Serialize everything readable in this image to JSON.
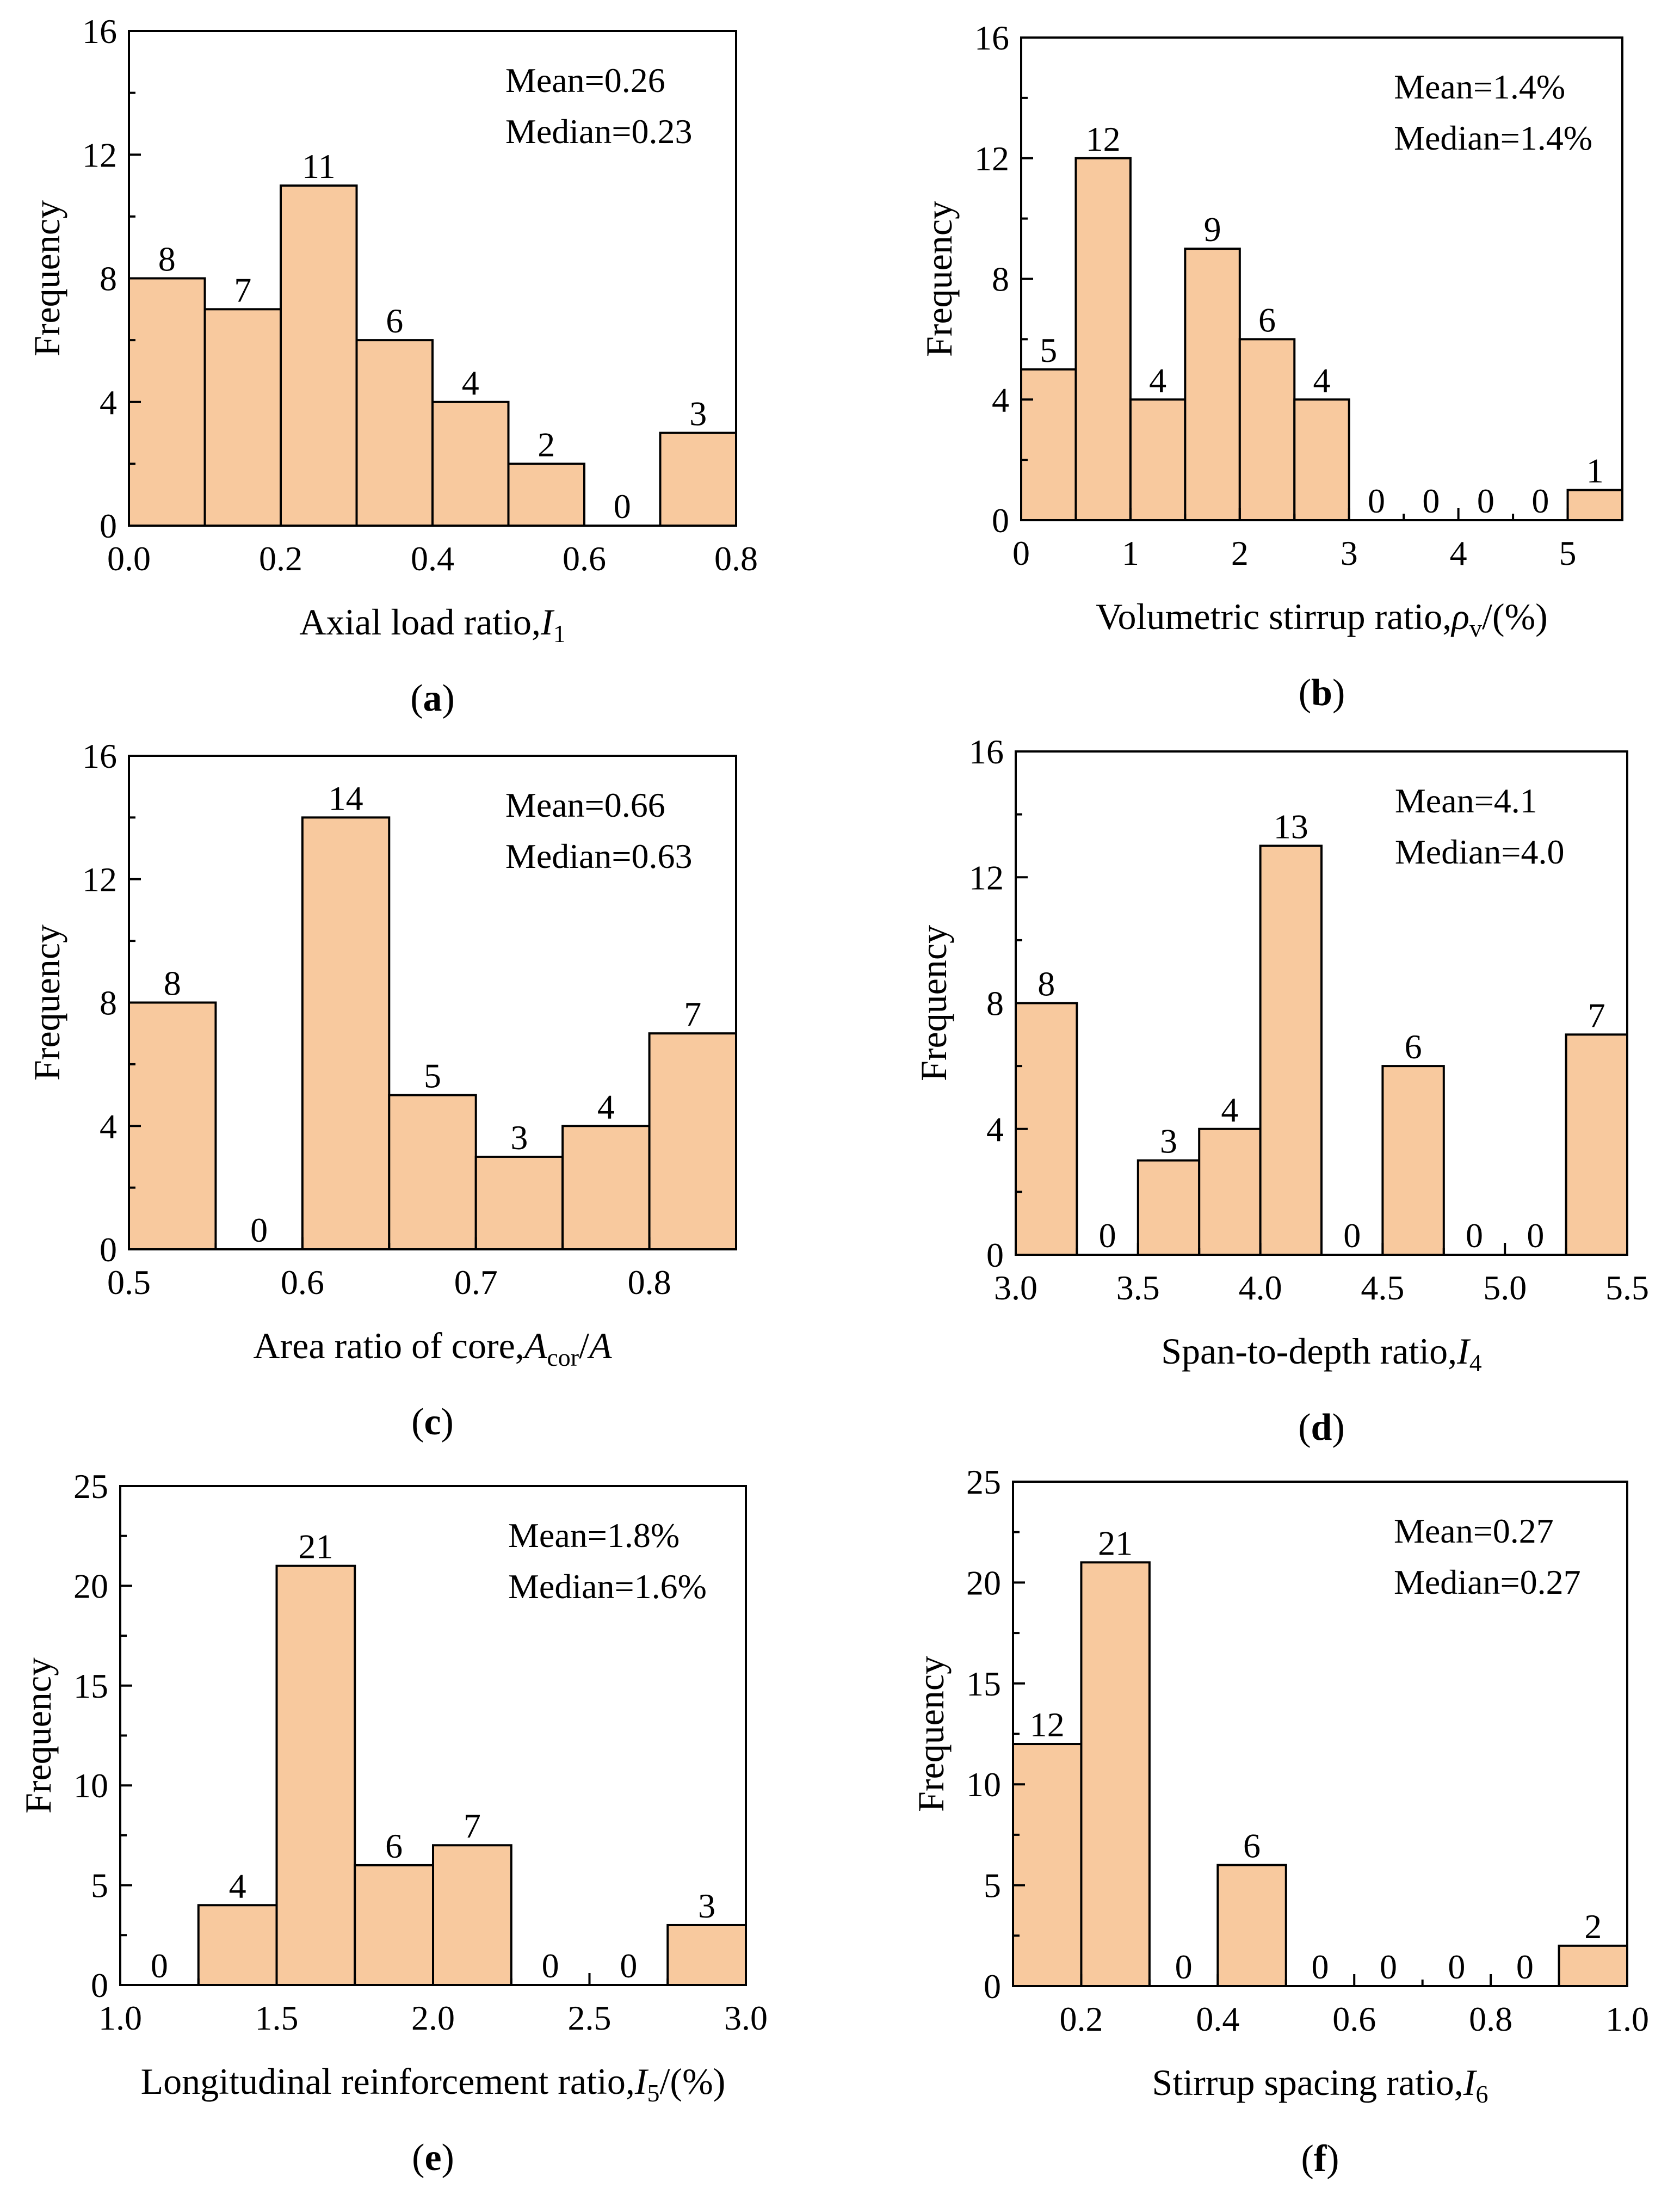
{
  "chart_data": [
    {
      "id": "a",
      "type": "bar",
      "panel_label": "a",
      "xlabel": "Axial load ratio,",
      "xlabel_sym": "I",
      "xlabel_sub": "1",
      "xlabel_tail": "",
      "ylabel": "Frequency",
      "mean_text": "Mean=0.26",
      "median_text": "Median=0.23",
      "xlim": [
        0.0,
        0.8
      ],
      "ylim": [
        0,
        16
      ],
      "x_ticks": [
        0.0,
        0.2,
        0.4,
        0.6,
        0.8
      ],
      "x_tick_labels": [
        "0.0",
        "0.2",
        "0.4",
        "0.6",
        "0.8"
      ],
      "x_minor_ticks": [
        0.1,
        0.3,
        0.5,
        0.7
      ],
      "y_ticks": [
        0,
        4,
        8,
        12,
        16
      ],
      "y_tick_labels": [
        "0",
        "4",
        "8",
        "12",
        "16"
      ],
      "y_minor_ticks": [
        2,
        6,
        10,
        14
      ],
      "bin_edges": [
        0.0,
        0.1,
        0.2,
        0.3,
        0.4,
        0.5,
        0.6,
        0.7,
        0.8
      ],
      "values": [
        8,
        7,
        11,
        6,
        4,
        2,
        0,
        3
      ]
    },
    {
      "id": "b",
      "type": "bar",
      "panel_label": "b",
      "xlabel": "Volumetric stirrup ratio,",
      "xlabel_sym": "ρ",
      "xlabel_sub": "v",
      "xlabel_tail": "/(%)",
      "ylabel": "Frequency",
      "mean_text": "Mean=1.4%",
      "median_text": "Median=1.4%",
      "xlim": [
        0,
        5.5
      ],
      "ylim": [
        0,
        16
      ],
      "x_ticks": [
        0,
        1,
        2,
        3,
        4,
        5
      ],
      "x_tick_labels": [
        "0",
        "1",
        "2",
        "3",
        "4",
        "5"
      ],
      "x_minor_ticks": [
        0.5,
        1.5,
        2.5,
        3.5,
        4.5
      ],
      "y_ticks": [
        0,
        4,
        8,
        12,
        16
      ],
      "y_tick_labels": [
        "0",
        "4",
        "8",
        "12",
        "16"
      ],
      "y_minor_ticks": [
        2,
        6,
        10,
        14
      ],
      "bin_edges": [
        0,
        0.5,
        1.0,
        1.5,
        2.0,
        2.5,
        3.0,
        3.5,
        4.0,
        4.5,
        5.0,
        5.5
      ],
      "values": [
        5,
        12,
        4,
        9,
        6,
        4,
        0,
        0,
        0,
        0,
        1
      ]
    },
    {
      "id": "c",
      "type": "bar",
      "panel_label": "c",
      "xlabel": "Area ratio of core,",
      "xlabel_sym": "A",
      "xlabel_sub": "cor",
      "xlabel_tail": "/A",
      "ylabel": "Frequency",
      "mean_text": "Mean=0.66",
      "median_text": "Median=0.63",
      "xlim": [
        0.5,
        0.85
      ],
      "ylim": [
        0,
        16
      ],
      "x_ticks": [
        0.5,
        0.6,
        0.7,
        0.8
      ],
      "x_tick_labels": [
        "0.5",
        "0.6",
        "0.7",
        "0.8"
      ],
      "x_minor_ticks": [
        0.55,
        0.65,
        0.75
      ],
      "y_ticks": [
        0,
        4,
        8,
        12,
        16
      ],
      "y_tick_labels": [
        "0",
        "4",
        "8",
        "12",
        "16"
      ],
      "y_minor_ticks": [
        2,
        6,
        10,
        14
      ],
      "bin_edges": [
        0.5,
        0.55,
        0.6,
        0.65,
        0.7,
        0.75,
        0.8,
        0.85
      ],
      "values": [
        8,
        0,
        14,
        5,
        3,
        4,
        7
      ]
    },
    {
      "id": "d",
      "type": "bar",
      "panel_label": "d",
      "xlabel": "Span-to-depth ratio,",
      "xlabel_sym": "I",
      "xlabel_sub": "4",
      "xlabel_tail": "",
      "ylabel": "Frequency",
      "mean_text": "Mean=4.1",
      "median_text": "Median=4.0",
      "xlim": [
        3.0,
        5.5
      ],
      "ylim": [
        0,
        16
      ],
      "x_ticks": [
        3.0,
        3.5,
        4.0,
        4.5,
        5.0,
        5.5
      ],
      "x_tick_labels": [
        "3.0",
        "3.5",
        "4.0",
        "4.5",
        "5.0",
        "5.5"
      ],
      "x_minor_ticks": [
        3.25,
        3.75,
        4.25,
        4.75,
        5.25
      ],
      "y_ticks": [
        0,
        4,
        8,
        12,
        16
      ],
      "y_tick_labels": [
        "0",
        "4",
        "8",
        "12",
        "16"
      ],
      "y_minor_ticks": [
        2,
        6,
        10,
        14
      ],
      "bin_edges": [
        3.0,
        3.25,
        3.5,
        3.75,
        4.0,
        4.25,
        4.5,
        4.75,
        5.0,
        5.25,
        5.5
      ],
      "values": [
        8,
        0,
        3,
        4,
        13,
        0,
        6,
        0,
        0,
        7
      ]
    },
    {
      "id": "e",
      "type": "bar",
      "panel_label": "e",
      "xlabel": "Longitudinal reinforcement ratio,",
      "xlabel_sym": "I",
      "xlabel_sub": "5",
      "xlabel_tail": "/(%)",
      "ylabel": "Frequency",
      "mean_text": "Mean=1.8%",
      "median_text": "Median=1.6%",
      "xlim": [
        1.0,
        3.0
      ],
      "ylim": [
        0,
        25
      ],
      "x_ticks": [
        1.0,
        1.5,
        2.0,
        2.5,
        3.0
      ],
      "x_tick_labels": [
        "1.0",
        "1.5",
        "2.0",
        "2.5",
        "3.0"
      ],
      "x_minor_ticks": [
        1.25,
        1.75,
        2.25,
        2.75
      ],
      "y_ticks": [
        0,
        5,
        10,
        15,
        20,
        25
      ],
      "y_tick_labels": [
        "0",
        "5",
        "10",
        "15",
        "20",
        "25"
      ],
      "y_minor_ticks": [
        2.5,
        7.5,
        12.5,
        17.5,
        22.5
      ],
      "bin_edges": [
        1.0,
        1.25,
        1.5,
        1.75,
        2.0,
        2.25,
        2.5,
        2.75,
        3.0
      ],
      "values": [
        0,
        4,
        21,
        6,
        7,
        0,
        0,
        3
      ]
    },
    {
      "id": "f",
      "type": "bar",
      "panel_label": "f",
      "xlabel": "Stirrup spacing ratio,",
      "xlabel_sym": "I",
      "xlabel_sub": "6",
      "xlabel_tail": "",
      "ylabel": "Frequency",
      "mean_text": "Mean=0.27",
      "median_text": "Median=0.27",
      "xlim": [
        0.1,
        1.0
      ],
      "ylim": [
        0,
        25
      ],
      "x_ticks": [
        0.2,
        0.4,
        0.6,
        0.8,
        1.0
      ],
      "x_tick_labels": [
        "0.2",
        "0.4",
        "0.6",
        "0.8",
        "1.0"
      ],
      "x_minor_ticks": [
        0.3,
        0.5,
        0.7,
        0.9
      ],
      "y_ticks": [
        0,
        5,
        10,
        15,
        20,
        25
      ],
      "y_tick_labels": [
        "0",
        "5",
        "10",
        "15",
        "20",
        "25"
      ],
      "y_minor_ticks": [
        2.5,
        7.5,
        12.5,
        17.5,
        22.5
      ],
      "bin_edges": [
        0.1,
        0.2,
        0.3,
        0.4,
        0.5,
        0.6,
        0.7,
        0.8,
        0.9,
        1.0
      ],
      "values": [
        12,
        21,
        0,
        6,
        0,
        0,
        0,
        0,
        2
      ]
    }
  ],
  "style": {
    "bar_fill": "#f8c99e",
    "bar_stroke": "#000000",
    "axis_color": "#000000"
  }
}
